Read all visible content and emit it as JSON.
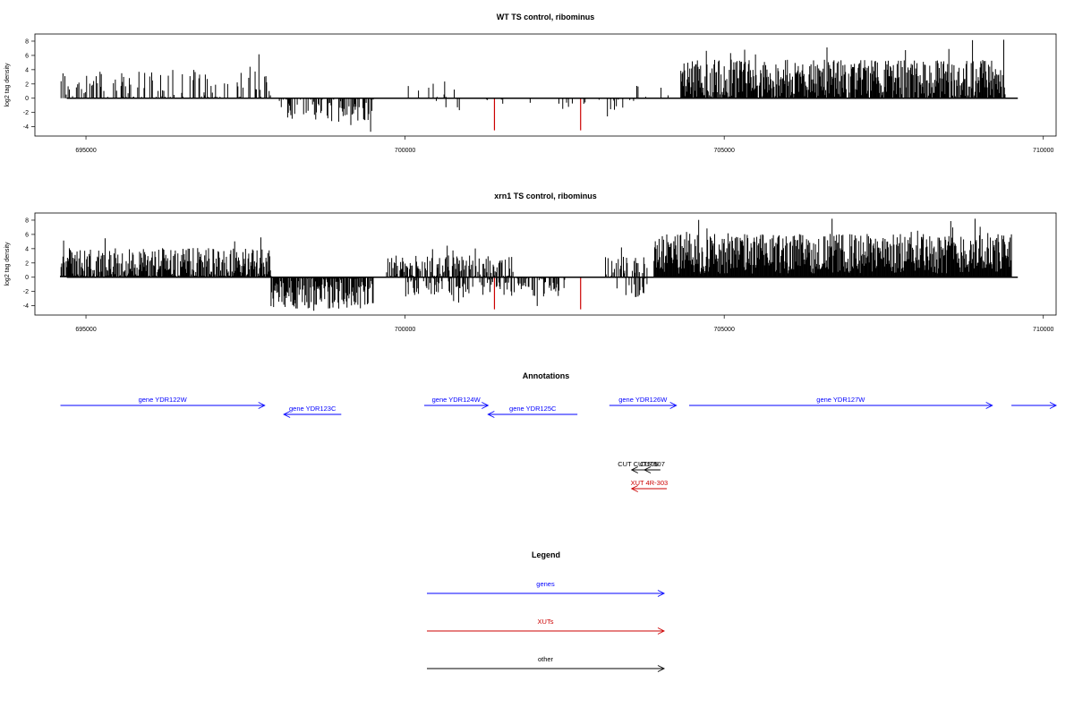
{
  "chart_data": [
    {
      "type": "bar",
      "title": "WT TS control, ribominus",
      "ylabel": "log2 tag density",
      "xlim": [
        694200,
        710200
      ],
      "ylim": [
        -5.3,
        9
      ],
      "x_ticks": [
        695000,
        700000,
        705000,
        710000
      ],
      "y_ticks": [
        -4,
        -2,
        0,
        2,
        4,
        6,
        8
      ],
      "series_color": "#000000",
      "highlight_color": "#cc0000",
      "segments": [
        {
          "start": 694600,
          "end": 697900,
          "density": 0.35,
          "mean": 1.8,
          "amp": 2.2,
          "sign": 1
        },
        {
          "start": 698000,
          "end": 699500,
          "density": 0.45,
          "mean": -1.5,
          "amp": 1.8,
          "sign": -1
        },
        {
          "start": 700000,
          "end": 700900,
          "density": 0.08,
          "mean": 1.2,
          "amp": 1.5,
          "sign": 1
        },
        {
          "start": 700400,
          "end": 703700,
          "density": 0.06,
          "mean": -0.8,
          "amp": 0.8,
          "sign": -1
        },
        {
          "start": 703000,
          "end": 704300,
          "density": 0.06,
          "mean": 1.0,
          "amp": 1.6,
          "sign": 1
        },
        {
          "start": 704300,
          "end": 709400,
          "density": 0.9,
          "mean": 2.8,
          "amp": 2.6,
          "sign": 1
        }
      ],
      "highlights": [
        {
          "x": 701400,
          "y": -4.5
        },
        {
          "x": 702750,
          "y": -4.5
        }
      ]
    },
    {
      "type": "bar",
      "title": "xrn1 TS control, ribominus",
      "ylabel": "log2 tag density",
      "xlim": [
        694200,
        710200
      ],
      "ylim": [
        -5.3,
        9
      ],
      "x_ticks": [
        695000,
        700000,
        705000,
        710000
      ],
      "y_ticks": [
        -4,
        -2,
        0,
        2,
        4,
        6,
        8
      ],
      "series_color": "#000000",
      "highlight_color": "#cc0000",
      "segments": [
        {
          "start": 694600,
          "end": 697900,
          "density": 0.9,
          "mean": 1.9,
          "amp": 2.2,
          "sign": 1
        },
        {
          "start": 697900,
          "end": 699500,
          "density": 0.85,
          "mean": -2.2,
          "amp": 2.2,
          "sign": -1
        },
        {
          "start": 699700,
          "end": 701700,
          "density": 0.6,
          "mean": 1.5,
          "amp": 1.6,
          "sign": 1
        },
        {
          "start": 700000,
          "end": 702500,
          "density": 0.4,
          "mean": -1.4,
          "amp": 1.3,
          "sign": -1
        },
        {
          "start": 703100,
          "end": 703800,
          "density": 0.4,
          "mean": 1.6,
          "amp": 1.4,
          "sign": 1
        },
        {
          "start": 703300,
          "end": 703800,
          "density": 0.3,
          "mean": -1.5,
          "amp": 1.5,
          "sign": -1
        },
        {
          "start": 703900,
          "end": 709500,
          "density": 1.0,
          "mean": 3.3,
          "amp": 2.8,
          "sign": 1
        }
      ],
      "highlights": [
        {
          "x": 701400,
          "y": -4.5
        },
        {
          "x": 702750,
          "y": -4.5
        }
      ]
    }
  ],
  "annotations": {
    "title": "Annotations",
    "xlim": [
      694200,
      710200
    ],
    "features": [
      {
        "label": "gene YDR122W",
        "start": 694600,
        "end": 697800,
        "strand": "+",
        "color": "#0000ff",
        "row": 0
      },
      {
        "label": "gene YDR123C",
        "start": 698100,
        "end": 699000,
        "strand": "-",
        "color": "#0000ff",
        "row": 1
      },
      {
        "label": "gene YDR124W",
        "start": 700300,
        "end": 701300,
        "strand": "+",
        "color": "#0000ff",
        "row": 0
      },
      {
        "label": "gene YDR125C",
        "start": 701300,
        "end": 702700,
        "strand": "-",
        "color": "#0000ff",
        "row": 1
      },
      {
        "label": "gene YDR126W",
        "start": 703200,
        "end": 704250,
        "strand": "+",
        "color": "#0000ff",
        "row": 0
      },
      {
        "label": "gene YDR127W",
        "start": 704450,
        "end": 709200,
        "strand": "+",
        "color": "#0000ff",
        "row": 0
      },
      {
        "label": "",
        "start": 709500,
        "end": 710200,
        "strand": "+",
        "color": "#0000ff",
        "row": 0
      },
      {
        "label": "CUT CUT506",
        "start": 703550,
        "end": 703750,
        "strand": "-",
        "color": "#000000",
        "row": 2
      },
      {
        "label": "CUT507",
        "start": 703750,
        "end": 704000,
        "strand": "-",
        "color": "#000000",
        "row": 2
      },
      {
        "label": "XUT 4R-303",
        "start": 703550,
        "end": 704100,
        "strand": "-",
        "color": "#cc0000",
        "row": 3
      }
    ]
  },
  "legend": {
    "title": "Legend",
    "items": [
      {
        "label": "genes",
        "color": "#0000ff"
      },
      {
        "label": "XUTs",
        "color": "#cc0000"
      },
      {
        "label": "other",
        "color": "#000000"
      }
    ]
  }
}
